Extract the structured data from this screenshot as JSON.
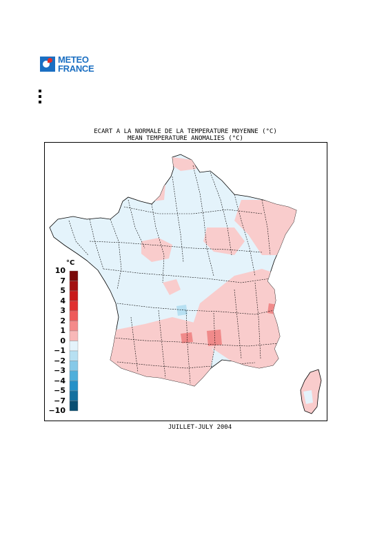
{
  "header": {
    "logo_line1": "METEO",
    "logo_line2": "FRANCE",
    "logo_icon": "meteo-france-logo-icon"
  },
  "map": {
    "title_fr": "ECART A LA NORMALE DE LA TEMPERATURE MOYENNE (°C)",
    "title_en": "MEAN TEMPERATURE ANOMALIES (°C)",
    "caption": "JUILLET-JULY 2004"
  },
  "legend": {
    "unit": "°C",
    "labels": [
      "10",
      "7",
      "5",
      "4",
      "3",
      "2",
      "1",
      "0",
      "−1",
      "−2",
      "−3",
      "−4",
      "−5",
      "−7",
      "−10"
    ],
    "colors": [
      "#7a0a0a",
      "#a31010",
      "#c81a1a",
      "#e03030",
      "#ee5a5a",
      "#f48a8a",
      "#f8b8b8",
      "#ffffff",
      "#e4f3fb",
      "#b7e0f2",
      "#86c9e8",
      "#4fafdb",
      "#2591c8",
      "#14709f",
      "#0b4f72"
    ]
  }
}
